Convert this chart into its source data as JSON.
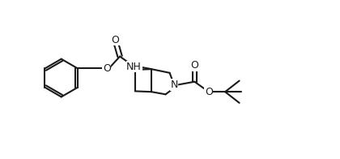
{
  "background": "#ffffff",
  "line_color": "#1a1a1a",
  "line_width": 1.5,
  "fig_width": 4.2,
  "fig_height": 1.96,
  "dpi": 100,
  "xlim": [
    0,
    10
  ],
  "ylim": [
    0,
    5
  ]
}
